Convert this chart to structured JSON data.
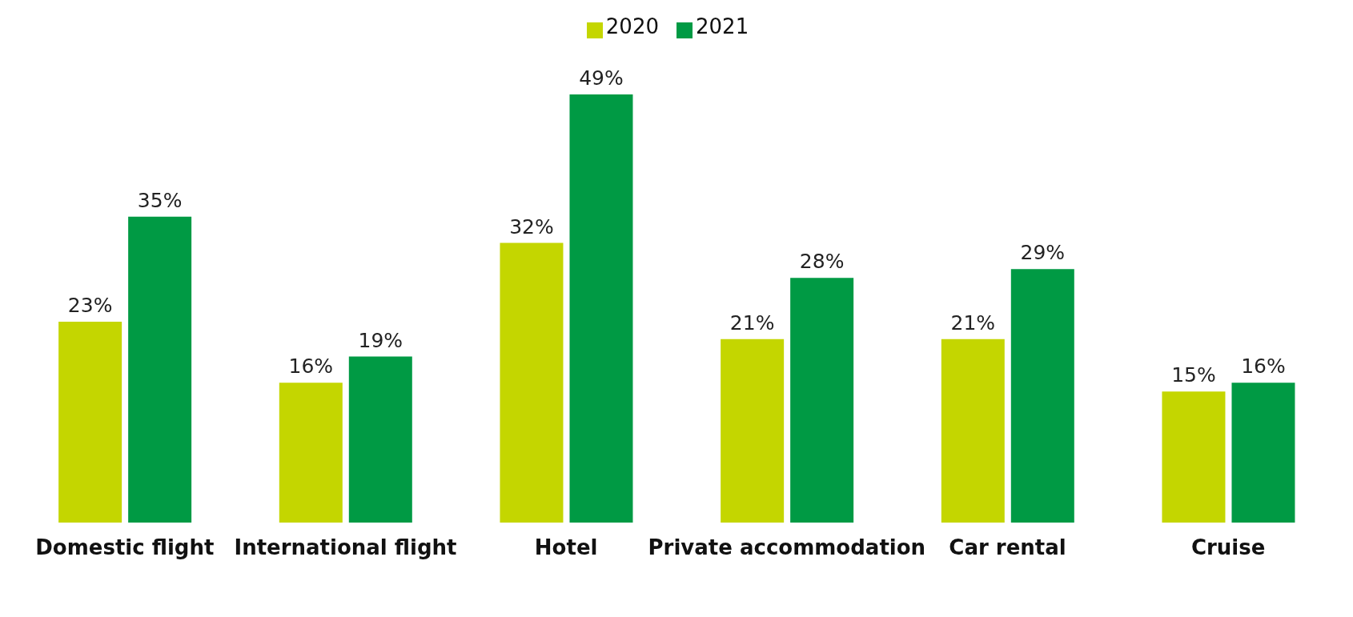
{
  "chart_data": {
    "type": "bar",
    "categories": [
      "Domestic flight",
      "International flight",
      "Hotel",
      "Private accommodation",
      "Car rental",
      "Cruise"
    ],
    "series": [
      {
        "name": "2020",
        "color": "#c4d600",
        "values": [
          23,
          16,
          32,
          21,
          21,
          15
        ],
        "value_labels": [
          "23%",
          "16%",
          "32%",
          "21%",
          "21%",
          "15%"
        ]
      },
      {
        "name": "2021",
        "color": "#009a44",
        "values": [
          35,
          19,
          49,
          28,
          29,
          16
        ],
        "value_labels": [
          "35%",
          "19%",
          "49%",
          "28%",
          "29%",
          "16%"
        ]
      }
    ],
    "legend": "top",
    "grid": false,
    "tick_labels": "x"
  }
}
